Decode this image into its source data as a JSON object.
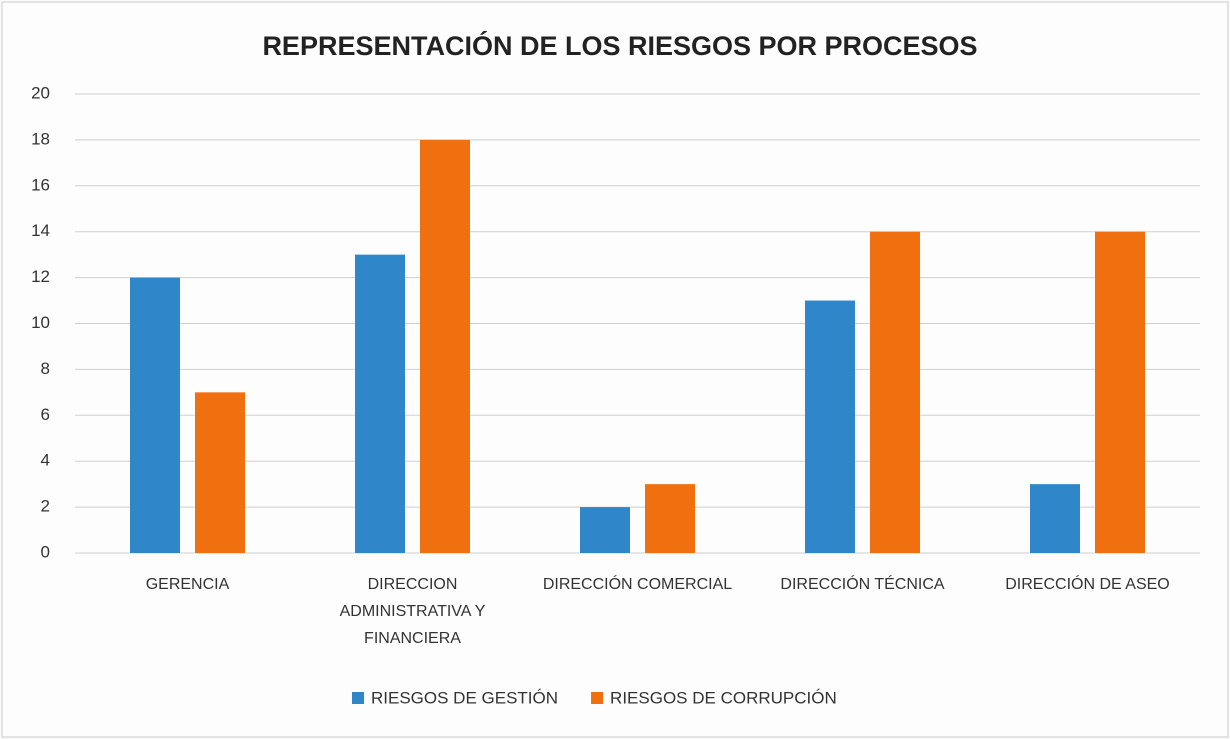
{
  "chart_data": {
    "type": "bar",
    "title": "REPRESENTACIÓN DE LOS RIESGOS POR PROCESOS",
    "categories": [
      "GERENCIA",
      "DIRECCION ADMINISTRATIVA Y FINANCIERA",
      "DIRECCIÓN COMERCIAL",
      "DIRECCIÓN TÉCNICA",
      "DIRECCIÓN DE ASEO"
    ],
    "series": [
      {
        "name": "RIESGOS DE GESTIÓN",
        "color": "#2f87c9",
        "values": [
          12,
          13,
          2,
          11,
          3
        ]
      },
      {
        "name": "RIESGOS DE CORRUPCIÓN",
        "color": "#f0700f",
        "values": [
          7,
          18,
          3,
          14,
          14
        ]
      }
    ],
    "ylim": [
      0,
      20
    ],
    "yticks": [
      0,
      2,
      4,
      6,
      8,
      10,
      12,
      14,
      16,
      18,
      20
    ],
    "grid": true,
    "legend": "bottom"
  }
}
